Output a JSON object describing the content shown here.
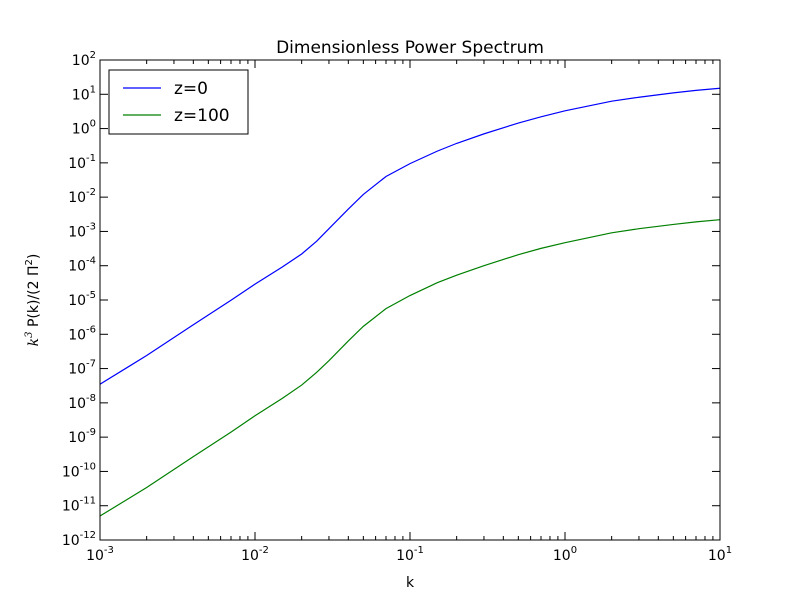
{
  "chart_data": {
    "type": "line",
    "title": "Dimensionless Power Spectrum",
    "xlabel": "k",
    "ylabel_parts": {
      "math_base": "k",
      "math_exp": "3",
      "middle": " P(k)/(2 Π",
      "pi_exp": "2",
      "end": ")"
    },
    "x_scale": "log",
    "y_scale": "log",
    "xlim": [
      0.001,
      10
    ],
    "ylim": [
      1e-12,
      100
    ],
    "x_ticks": [
      {
        "value": 0.001,
        "base": "10",
        "exp": "-3"
      },
      {
        "value": 0.01,
        "base": "10",
        "exp": "-2"
      },
      {
        "value": 0.1,
        "base": "10",
        "exp": "-1"
      },
      {
        "value": 1,
        "base": "10",
        "exp": "0"
      },
      {
        "value": 10,
        "base": "10",
        "exp": "1"
      }
    ],
    "y_ticks": [
      {
        "value": 1e-12,
        "base": "10",
        "exp": "-12"
      },
      {
        "value": 1e-11,
        "base": "10",
        "exp": "-11"
      },
      {
        "value": 1e-10,
        "base": "10",
        "exp": "-10"
      },
      {
        "value": 1e-09,
        "base": "10",
        "exp": "-9"
      },
      {
        "value": 1e-08,
        "base": "10",
        "exp": "-8"
      },
      {
        "value": 1e-07,
        "base": "10",
        "exp": "-7"
      },
      {
        "value": 1e-06,
        "base": "10",
        "exp": "-6"
      },
      {
        "value": 1e-05,
        "base": "10",
        "exp": "-5"
      },
      {
        "value": 0.0001,
        "base": "10",
        "exp": "-4"
      },
      {
        "value": 0.001,
        "base": "10",
        "exp": "-3"
      },
      {
        "value": 0.01,
        "base": "10",
        "exp": "-2"
      },
      {
        "value": 0.1,
        "base": "10",
        "exp": "-1"
      },
      {
        "value": 1,
        "base": "10",
        "exp": "0"
      },
      {
        "value": 10,
        "base": "10",
        "exp": "1"
      },
      {
        "value": 100,
        "base": "10",
        "exp": "2"
      }
    ],
    "grid": false,
    "legend_position": "top-left",
    "series": [
      {
        "name": "z=0",
        "color": "#0000ff",
        "points": [
          [
            0.001,
            3.5e-08
          ],
          [
            0.002,
            2.4e-07
          ],
          [
            0.004,
            1.9e-06
          ],
          [
            0.007,
            9.8e-06
          ],
          [
            0.01,
            2.9e-05
          ],
          [
            0.015,
            9.2e-05
          ],
          [
            0.02,
            0.00022
          ],
          [
            0.025,
            0.00052
          ],
          [
            0.03,
            0.0012
          ],
          [
            0.04,
            0.0045
          ],
          [
            0.05,
            0.012
          ],
          [
            0.07,
            0.04
          ],
          [
            0.1,
            0.095
          ],
          [
            0.15,
            0.22
          ],
          [
            0.2,
            0.37
          ],
          [
            0.3,
            0.7
          ],
          [
            0.5,
            1.45
          ],
          [
            0.7,
            2.2
          ],
          [
            1,
            3.3
          ],
          [
            2,
            6.3
          ],
          [
            3,
            8.2
          ],
          [
            5,
            11
          ],
          [
            7,
            13
          ],
          [
            10,
            15
          ]
        ]
      },
      {
        "name": "z=100",
        "color": "#008000",
        "points": [
          [
            0.001,
            5e-12
          ],
          [
            0.002,
            3.4e-11
          ],
          [
            0.004,
            2.7e-10
          ],
          [
            0.007,
            1.4e-09
          ],
          [
            0.01,
            4.2e-09
          ],
          [
            0.015,
            1.35e-08
          ],
          [
            0.02,
            3.3e-08
          ],
          [
            0.025,
            7.8e-08
          ],
          [
            0.03,
            1.7e-07
          ],
          [
            0.04,
            6.4e-07
          ],
          [
            0.05,
            1.7e-06
          ],
          [
            0.07,
            5.6e-06
          ],
          [
            0.1,
            1.35e-05
          ],
          [
            0.15,
            3.2e-05
          ],
          [
            0.2,
            5.3e-05
          ],
          [
            0.3,
            0.0001
          ],
          [
            0.5,
            0.00021
          ],
          [
            0.7,
            0.00032
          ],
          [
            1,
            0.00047
          ],
          [
            2,
            0.00091
          ],
          [
            3,
            0.0012
          ],
          [
            5,
            0.0016
          ],
          [
            7,
            0.0019
          ],
          [
            10,
            0.0022
          ]
        ]
      }
    ]
  }
}
